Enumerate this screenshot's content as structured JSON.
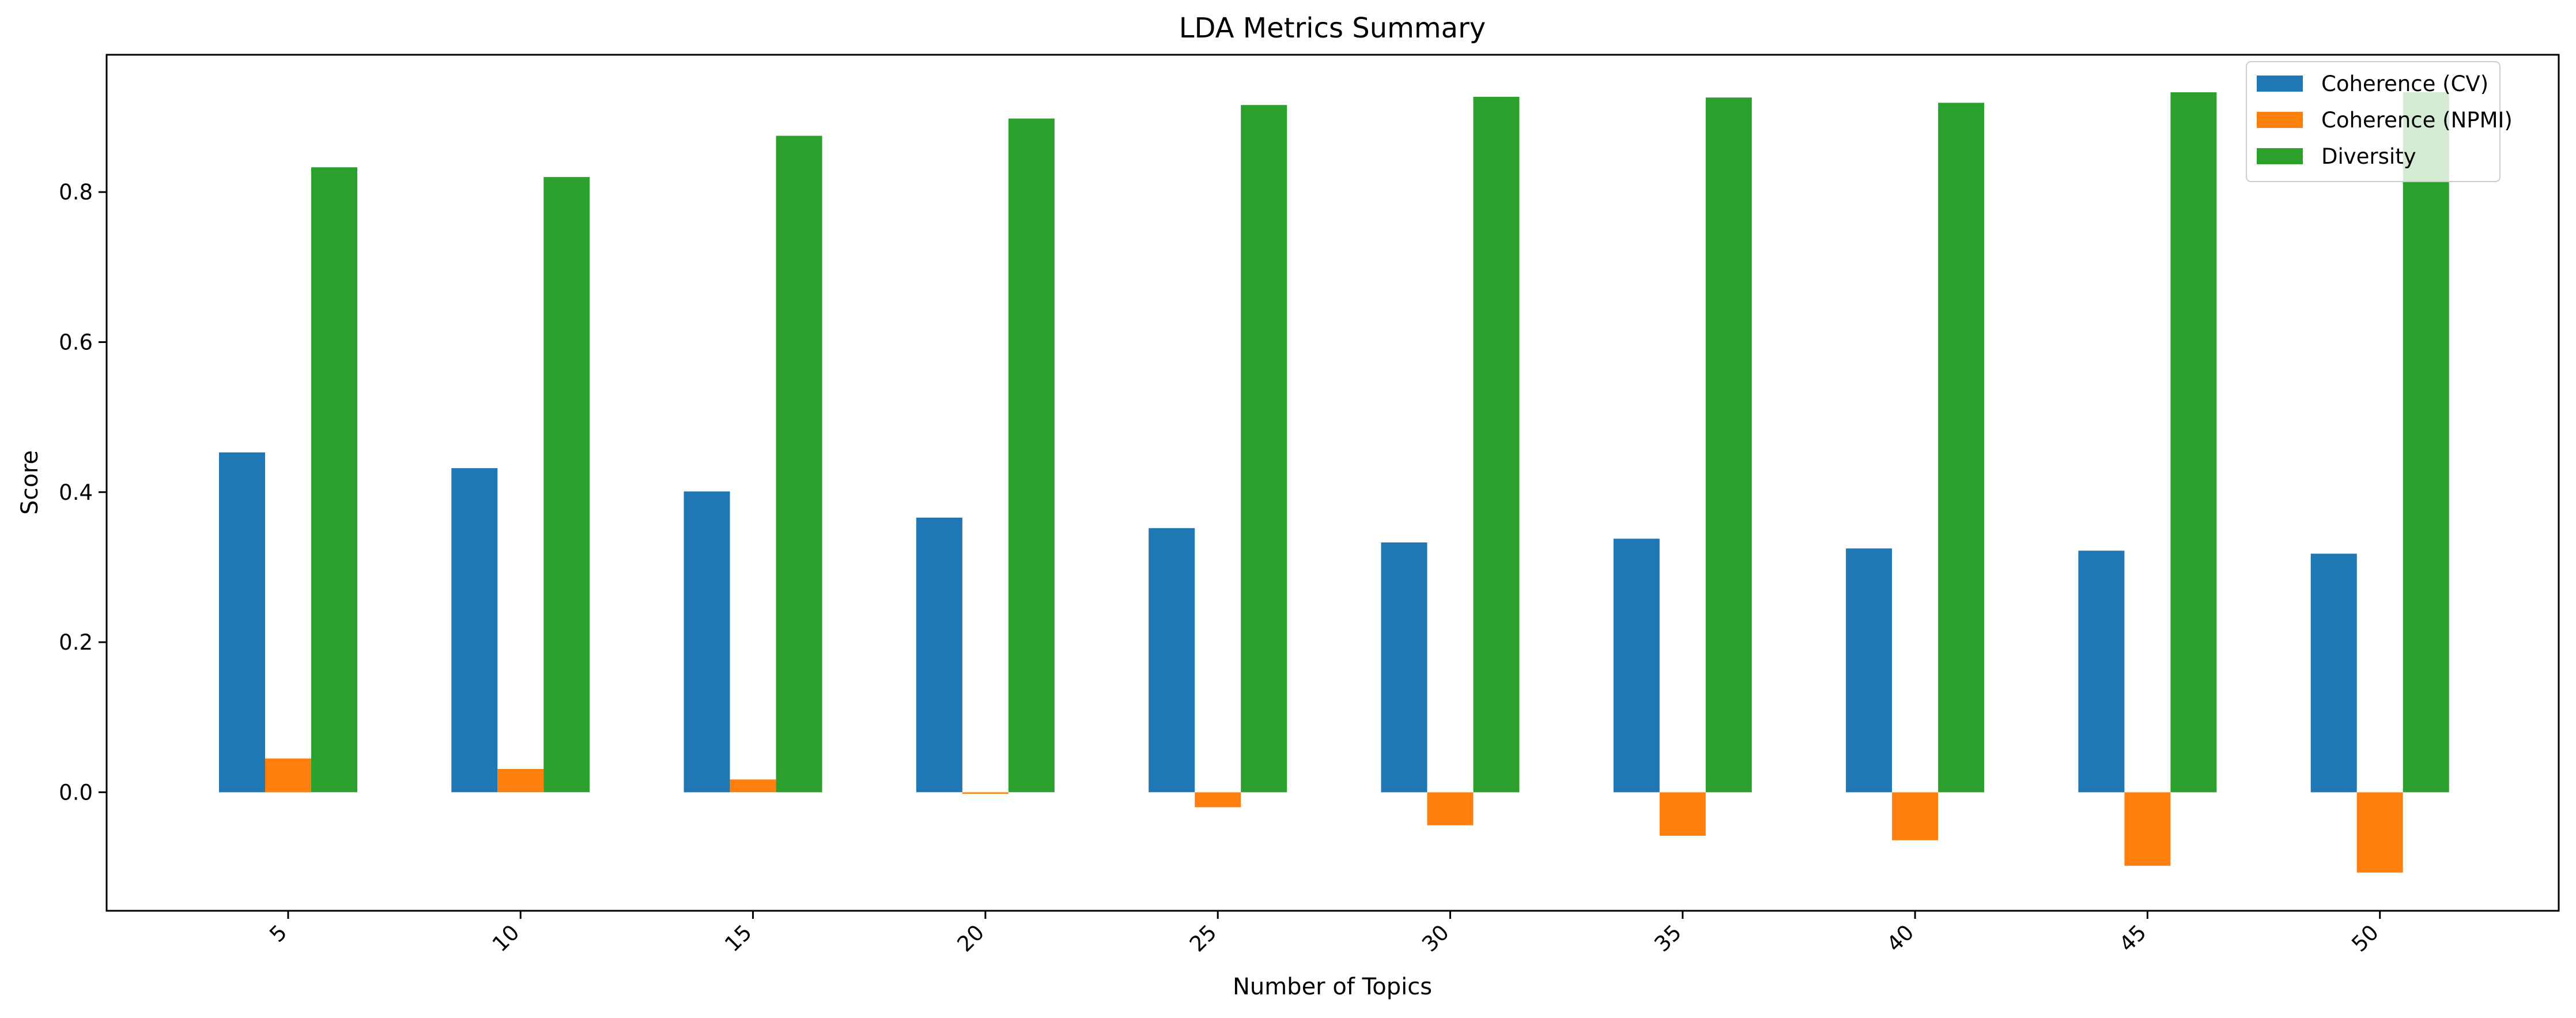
{
  "chart_data": {
    "type": "bar",
    "title": "LDA Metrics Summary",
    "xlabel": "Number of Topics",
    "ylabel": "Score",
    "categories": [
      "5",
      "10",
      "15",
      "20",
      "25",
      "30",
      "35",
      "40",
      "45",
      "50"
    ],
    "series": [
      {
        "name": "Coherence (CV)",
        "color": "#1f77b4",
        "values": [
          0.453,
          0.432,
          0.401,
          0.366,
          0.352,
          0.333,
          0.338,
          0.325,
          0.322,
          0.318
        ]
      },
      {
        "name": "Coherence (NPMI)",
        "color": "#ff7f0e",
        "values": [
          0.045,
          0.031,
          0.017,
          -0.002,
          -0.02,
          -0.044,
          -0.058,
          -0.064,
          -0.098,
          -0.107
        ]
      },
      {
        "name": "Diversity",
        "color": "#2ca02c",
        "values": [
          0.833,
          0.82,
          0.875,
          0.898,
          0.916,
          0.927,
          0.926,
          0.919,
          0.933,
          0.933
        ]
      }
    ],
    "ylim": [
      -0.158,
      0.983
    ],
    "yticks": [
      "0.0",
      "0.2",
      "0.4",
      "0.6",
      "0.8"
    ],
    "ytick_values": [
      0.0,
      0.2,
      0.4,
      0.6,
      0.8
    ],
    "xtick_rotation": 45,
    "grid": false,
    "legend_position": "top-right"
  }
}
